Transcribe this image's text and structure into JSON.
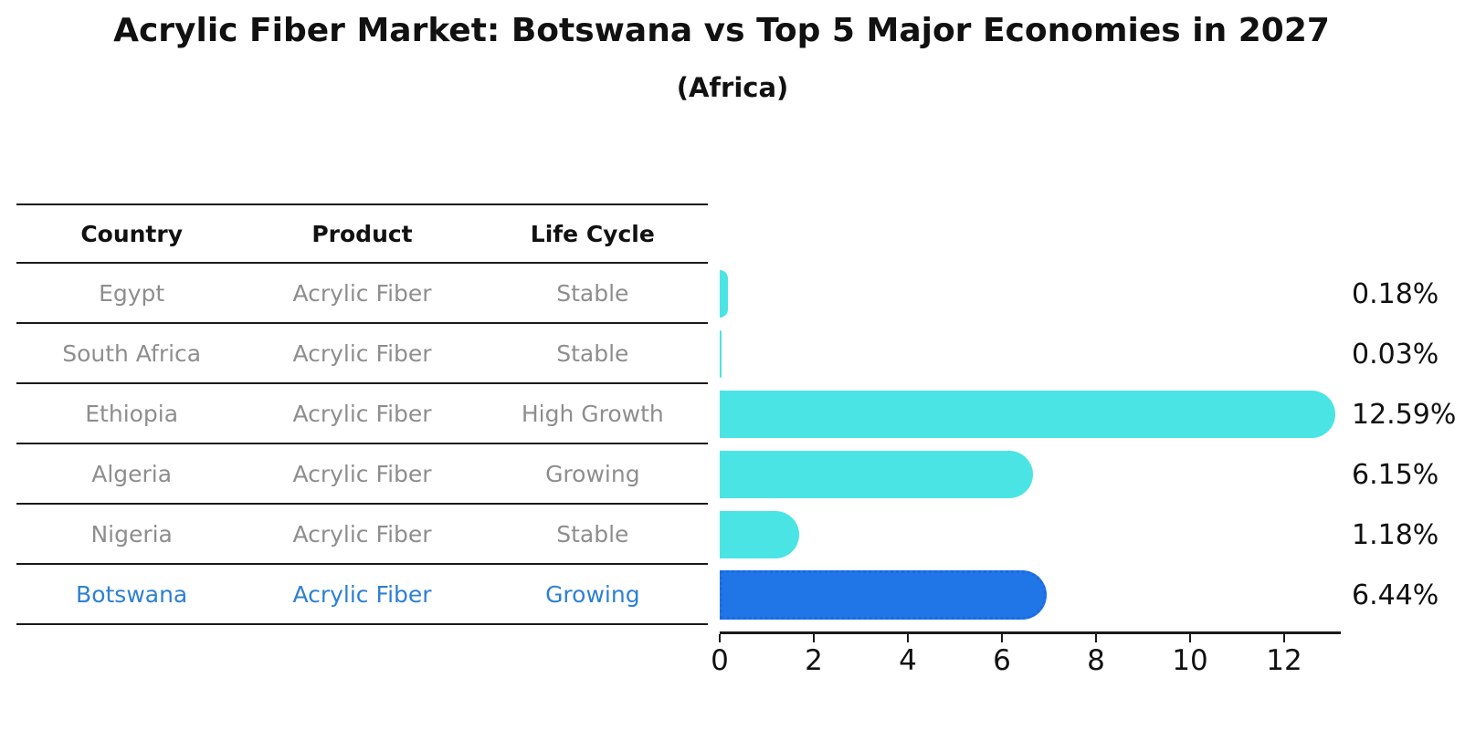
{
  "title": "Acrylic Fiber Market: Botswana vs Top 5 Major Economies in 2027",
  "subtitle": "(Africa)",
  "colors": {
    "bar": "#4BE4E4",
    "highlight_bar": "#2076E6",
    "highlight_border": "#1B69E3",
    "highlight_text": "#2E80D4",
    "row_text": "#8E8E8E",
    "header_text": "#111111",
    "line": "#1A1A1A",
    "label_text": "#111111"
  },
  "table": {
    "headers": [
      "Country",
      "Product",
      "Life Cycle"
    ],
    "rows": [
      {
        "country": "Egypt",
        "product": "Acrylic Fiber",
        "life_cycle": "Stable",
        "highlight": false
      },
      {
        "country": "South Africa",
        "product": "Acrylic Fiber",
        "life_cycle": "Stable",
        "highlight": false
      },
      {
        "country": "Ethiopia",
        "product": "Acrylic Fiber",
        "life_cycle": "High Growth",
        "highlight": false
      },
      {
        "country": "Algeria",
        "product": "Acrylic Fiber",
        "life_cycle": "Growing",
        "highlight": false
      },
      {
        "country": "Nigeria",
        "product": "Acrylic Fiber",
        "life_cycle": "Stable",
        "highlight": false
      },
      {
        "country": "Botswana",
        "product": "Acrylic Fiber",
        "life_cycle": "Growing",
        "highlight": true
      }
    ]
  },
  "chart_data": {
    "type": "bar",
    "orientation": "horizontal",
    "title": "Acrylic Fiber Market: Botswana vs Top 5 Major Economies in 2027 (Africa)",
    "categories": [
      "Egypt",
      "South Africa",
      "Ethiopia",
      "Algeria",
      "Nigeria",
      "Botswana"
    ],
    "values": [
      0.18,
      0.03,
      12.59,
      6.15,
      1.18,
      6.44
    ],
    "value_labels": [
      "0.18%",
      "0.03%",
      "12.59%",
      "6.15%",
      "1.18%",
      "6.44%"
    ],
    "highlight_index": 5,
    "x_ticks": [
      0,
      2,
      4,
      6,
      8,
      10,
      12
    ],
    "xlim": [
      0,
      13.2
    ],
    "xlabel": "",
    "ylabel": "",
    "grid": false,
    "legend": false
  }
}
